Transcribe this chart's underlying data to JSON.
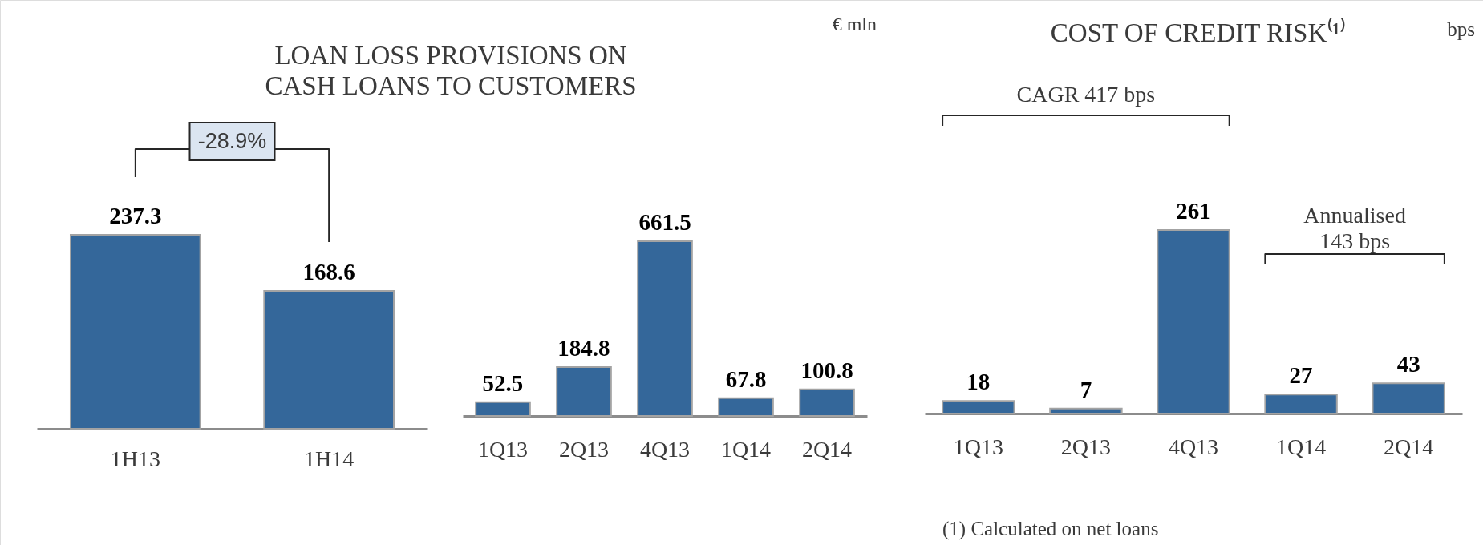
{
  "chart_data": [
    {
      "type": "bar",
      "title": "LOAN LOSS PROVISIONS ON CASH LOANS TO CUSTOMERS",
      "categories": [
        "1H13",
        "1H14"
      ],
      "values": [
        237.3,
        168.6
      ],
      "color": "#34679a",
      "data_labels": true,
      "annotations": [
        "-28.9%"
      ]
    },
    {
      "type": "bar",
      "categories": [
        "1Q13",
        "2Q13",
        "4Q13",
        "1Q14",
        "2Q14"
      ],
      "values": [
        52.5,
        184.8,
        661.5,
        67.8,
        100.8
      ],
      "color": "#34679a",
      "data_labels": true,
      "annotations": [
        "€ mln"
      ]
    },
    {
      "type": "bar",
      "title": "COST OF CREDIT RISK⁽¹⁾",
      "categories": [
        "1Q13",
        "2Q13",
        "4Q13",
        "1Q14",
        "2Q14"
      ],
      "values": [
        18,
        7,
        261,
        27,
        43
      ],
      "color": "#34679a",
      "data_labels": true,
      "annotations": [
        "bps",
        "CAGR 417 bps",
        "Annualised 143 bps",
        "(1) Calculated on net loans"
      ]
    }
  ]
}
